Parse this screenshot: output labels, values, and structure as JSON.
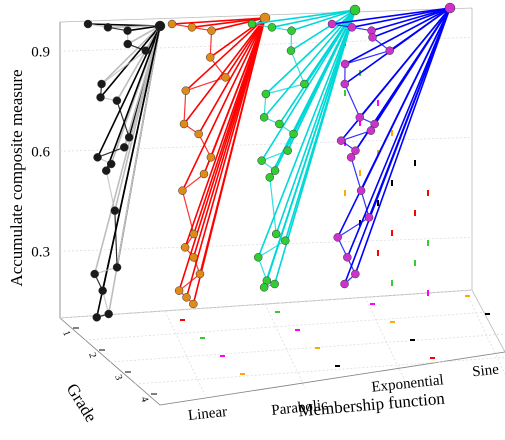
{
  "chart_data": {
    "type": "scatter",
    "projection": "3d",
    "ylabel": "Accumulate composite measure",
    "xlabel": "Membership function",
    "zlabel": "Grade",
    "categories": [
      "Linear",
      "Parabolic",
      "Exponential",
      "Sine"
    ],
    "grades": [
      "1",
      "2",
      "3",
      "4"
    ],
    "yticks": [
      "0.3",
      "0.6",
      "0.9"
    ],
    "ylim": [
      0.1,
      1.0
    ],
    "grid": true,
    "series": [
      {
        "category": "Linear",
        "line_colors": [
          "#000000",
          "#bdbdbd"
        ],
        "marker_color": "#1a1a1a",
        "values": [
          1.0,
          0.99,
          0.98,
          0.94,
          0.92,
          0.82,
          0.78,
          0.77,
          0.66,
          0.63,
          0.6,
          0.58,
          0.56,
          0.44,
          0.27,
          0.25,
          0.2,
          0.13,
          0.12
        ]
      },
      {
        "category": "Parabolic",
        "line_colors": [
          "#ff0000"
        ],
        "marker_color": "#e08a1a",
        "values": [
          1.0,
          0.99,
          0.98,
          0.9,
          0.84,
          0.8,
          0.7,
          0.67,
          0.6,
          0.55,
          0.5,
          0.37,
          0.33,
          0.3,
          0.25,
          0.2,
          0.18,
          0.16
        ]
      },
      {
        "category": "Exponential",
        "line_colors": [
          "#00d8d8"
        ],
        "marker_color": "#33cc33",
        "values": [
          1.0,
          0.99,
          0.98,
          0.92,
          0.82,
          0.79,
          0.72,
          0.7,
          0.67,
          0.62,
          0.59,
          0.56,
          0.54,
          0.37,
          0.35,
          0.3,
          0.23,
          0.22,
          0.21
        ]
      },
      {
        "category": "Sine",
        "line_colors": [
          "#0000ff"
        ],
        "marker_color": "#cc33cc",
        "values": [
          1.0,
          0.99,
          0.98,
          0.96,
          0.92,
          0.88,
          0.82,
          0.72,
          0.7,
          0.68,
          0.65,
          0.62,
          0.6,
          0.5,
          0.42,
          0.36,
          0.3,
          0.25,
          0.22
        ]
      }
    ],
    "projection_colors": [
      "#ff0000",
      "#33cc33",
      "#ff00ff",
      "#ffaa00",
      "#000000"
    ]
  }
}
